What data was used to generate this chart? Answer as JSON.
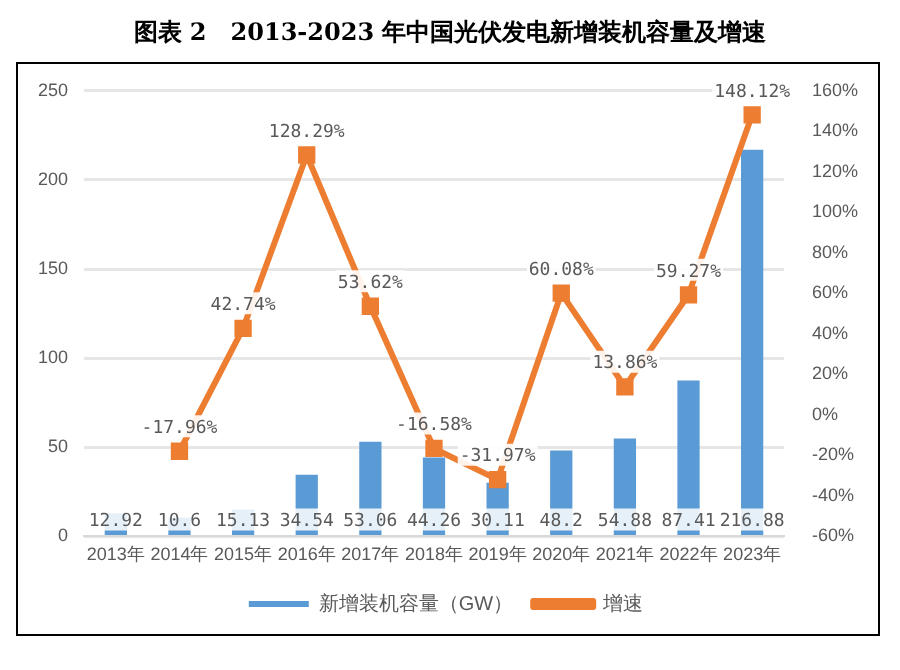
{
  "chart_data": {
    "type": "bar",
    "title": "图表 2　2013-2023 年中国光伏发电新增装机容量及增速",
    "categories": [
      "2013年",
      "2014年",
      "2015年",
      "2016年",
      "2017年",
      "2018年",
      "2019年",
      "2020年",
      "2021年",
      "2022年",
      "2023年"
    ],
    "series": [
      {
        "name": "新增装机容量（GW）",
        "color": "#5b9bd5",
        "values": [
          12.92,
          10.6,
          15.13,
          34.54,
          53.06,
          44.26,
          30.11,
          48.2,
          54.88,
          87.41,
          216.88
        ],
        "value_labels": [
          "12.92",
          "10.6",
          "15.13",
          "34.54",
          "53.06",
          "44.26",
          "30.11",
          "48.2",
          "54.88",
          "87.41",
          "216.88"
        ]
      },
      {
        "name": "增速",
        "type": "line",
        "axis": "y2",
        "color": "#ed7d31",
        "marker": "square",
        "values": [
          null,
          -17.96,
          42.74,
          128.29,
          53.62,
          -16.58,
          -31.97,
          60.08,
          13.86,
          59.27,
          148.12
        ],
        "value_labels": [
          null,
          "-17.96%",
          "42.74%",
          "128.29%",
          "53.62%",
          "-16.58%",
          "-31.97%",
          "60.08%",
          "13.86%",
          "59.27%",
          "148.12%"
        ]
      }
    ],
    "ylim": [
      0,
      250
    ],
    "yticks": [
      0,
      50,
      100,
      150,
      200,
      250
    ],
    "y2lim": [
      -60,
      160
    ],
    "y2ticks": [
      {
        "value": -60,
        "label": "-60%"
      },
      {
        "value": -40,
        "label": "-40%"
      },
      {
        "value": -20,
        "label": "-20%"
      },
      {
        "value": 0,
        "label": "0%"
      },
      {
        "value": 20,
        "label": "20%"
      },
      {
        "value": 40,
        "label": "40%"
      },
      {
        "value": 60,
        "label": "60%"
      },
      {
        "value": 80,
        "label": "80%"
      },
      {
        "value": 100,
        "label": "100%"
      },
      {
        "value": 120,
        "label": "120%"
      },
      {
        "value": 140,
        "label": "140%"
      },
      {
        "value": 160,
        "label": "160%"
      }
    ],
    "grid": "y",
    "legend": "bottom"
  }
}
